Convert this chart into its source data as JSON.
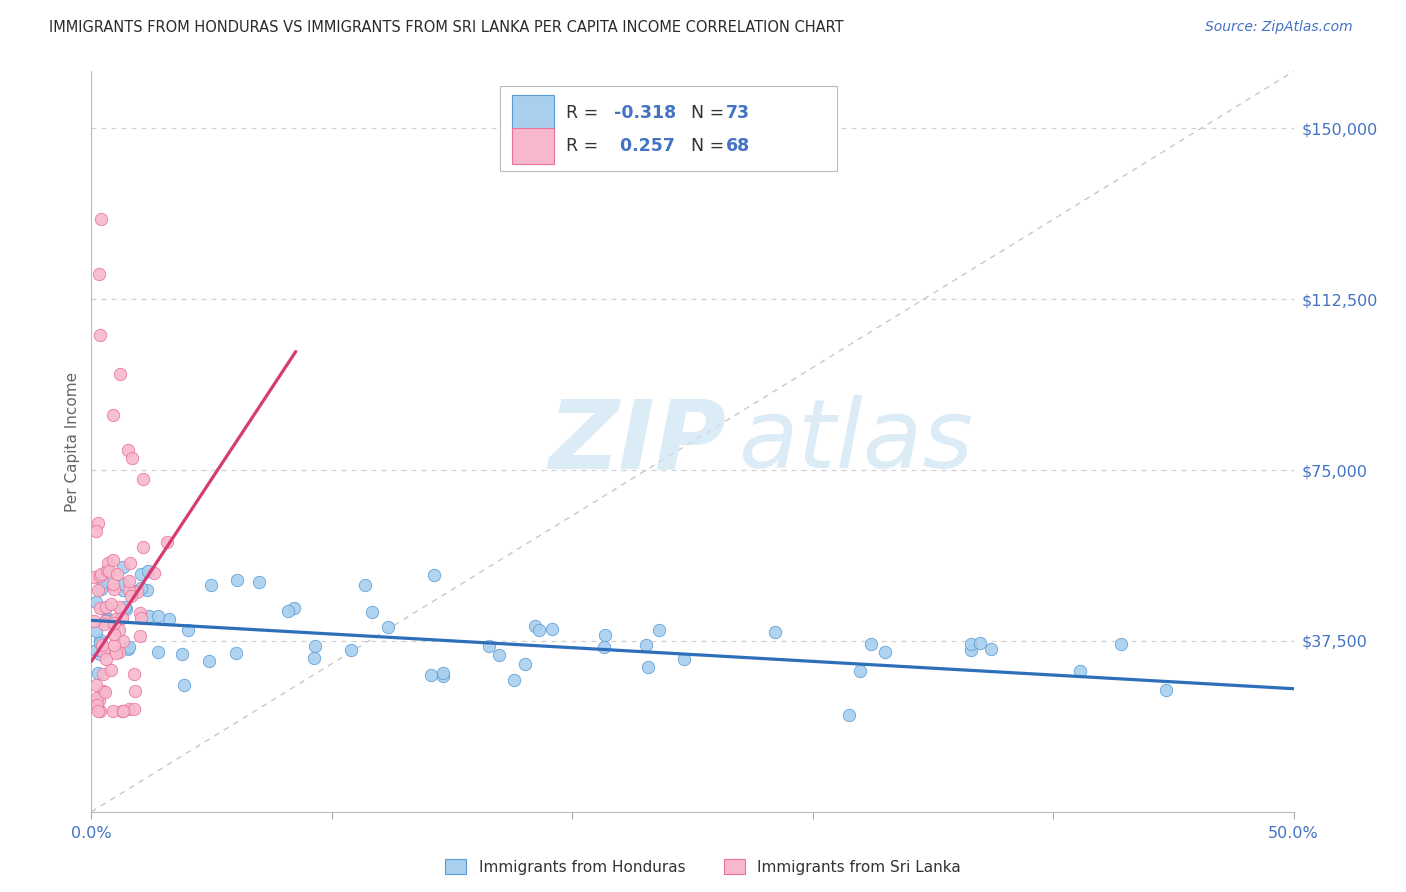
{
  "title": "IMMIGRANTS FROM HONDURAS VS IMMIGRANTS FROM SRI LANKA PER CAPITA INCOME CORRELATION CHART",
  "source": "Source: ZipAtlas.com",
  "ylabel": "Per Capita Income",
  "xlim": [
    0.0,
    0.5
  ],
  "ylim": [
    0,
    162500
  ],
  "yticks": [
    37500,
    75000,
    112500,
    150000
  ],
  "ytick_labels": [
    "$37,500",
    "$75,000",
    "$112,500",
    "$150,000"
  ],
  "xtick_vals": [
    0.0,
    0.1,
    0.2,
    0.3,
    0.4,
    0.5
  ],
  "xtick_labels": [
    "0.0%",
    "",
    "",
    "",
    "",
    "50.0%"
  ],
  "blue_face": "#a8d0ee",
  "blue_edge": "#5b9bd5",
  "blue_line": "#2e6fba",
  "pink_face": "#f7b8cc",
  "pink_edge": "#e8729a",
  "pink_line": "#d63b72",
  "blue_R": -0.318,
  "blue_N": 73,
  "pink_R": 0.257,
  "pink_N": 68,
  "label_blue": "Immigrants from Honduras",
  "label_pink": "Immigrants from Sri Lanka",
  "watermark_zip": "ZIP",
  "watermark_atlas": "atlas",
  "title_color": "#2b2b2b",
  "source_color": "#4472c4",
  "axis_color": "#4472c4",
  "ylabel_color": "#666666",
  "grid_color": "#d0d0d0",
  "diag_color": "#c8c8c8",
  "background": "#ffffff",
  "blue_seed": 101,
  "pink_seed": 55
}
